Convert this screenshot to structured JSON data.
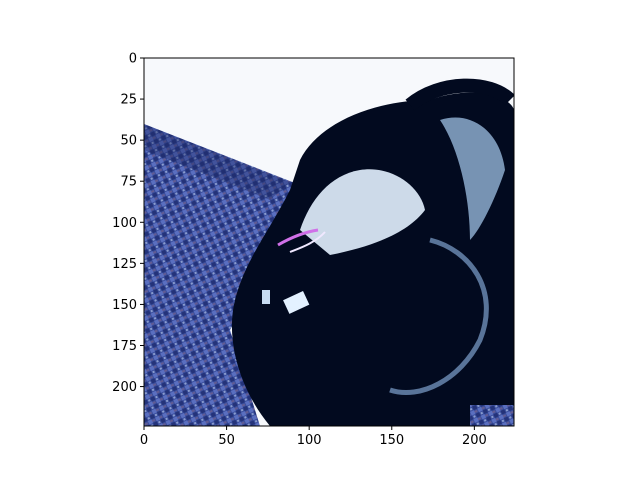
{
  "image_panel": {
    "x_ticks": [
      "0",
      "50",
      "100",
      "150",
      "200"
    ],
    "y_ticks": [
      "0",
      "25",
      "50",
      "75",
      "100",
      "125",
      "150",
      "175",
      "200"
    ],
    "x_tick_values": [
      0,
      50,
      100,
      150,
      200
    ],
    "y_tick_values": [
      0,
      25,
      50,
      75,
      100,
      125,
      150,
      175,
      200
    ],
    "x_range": [
      0,
      224
    ],
    "y_range": [
      0,
      224
    ],
    "content": "backpack-on-woven-fabric",
    "colors": {
      "fabric": "#3a4e9c",
      "fabric_dark": "#1d2a66",
      "background": "#f7f9fc",
      "object": "#020a1f",
      "highlight": "#e3f1ff",
      "accent": "#d070e8"
    }
  }
}
